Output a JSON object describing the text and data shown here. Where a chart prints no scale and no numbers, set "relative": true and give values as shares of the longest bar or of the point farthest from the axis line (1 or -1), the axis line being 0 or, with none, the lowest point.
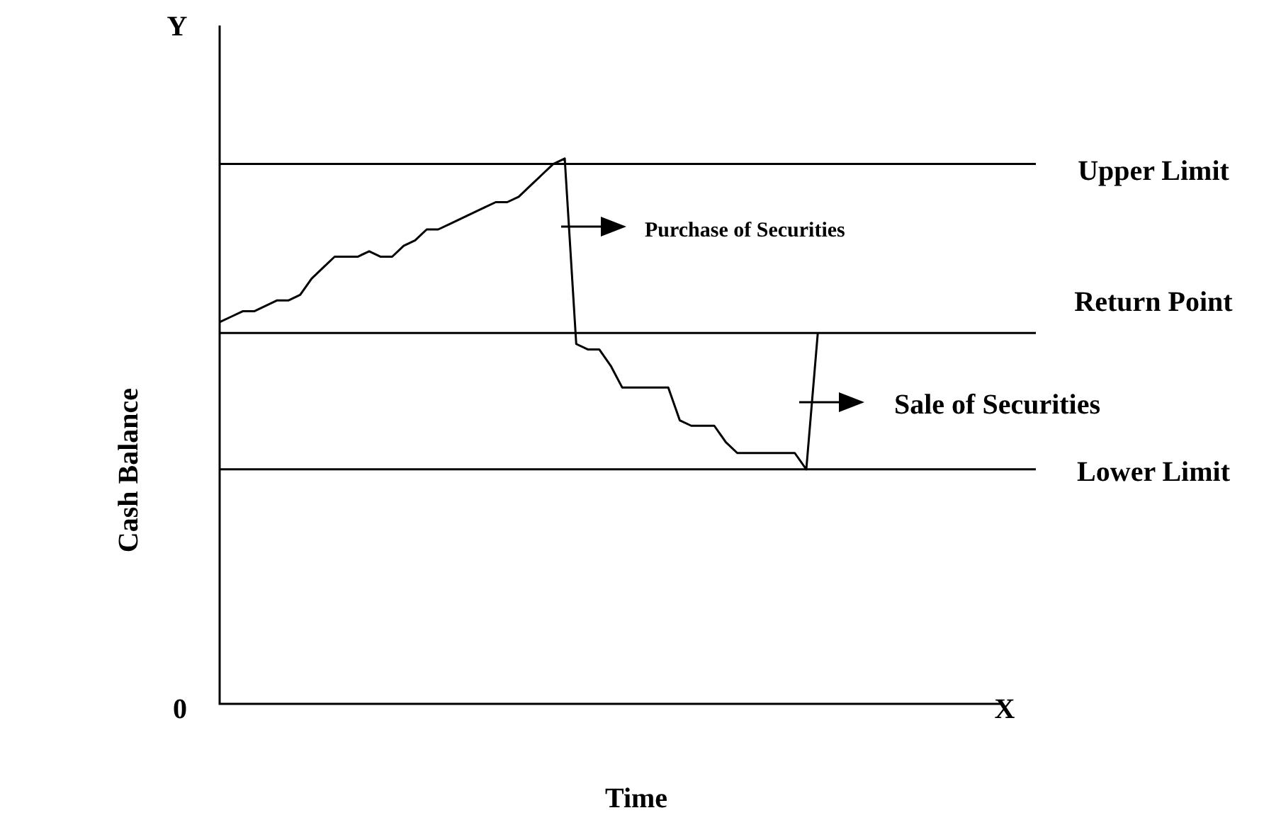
{
  "chart_data": {
    "type": "line",
    "relative": true,
    "xlabel": "Time",
    "ylabel": "Cash Balance",
    "legend": false,
    "marker": "none",
    "line_style": "solid",
    "categories": [
      null,
      null,
      null,
      null,
      null,
      null,
      null,
      null,
      null,
      null,
      null,
      null,
      null,
      null,
      null,
      null,
      null,
      null,
      null,
      null,
      null,
      null,
      null,
      null,
      null,
      null,
      null,
      null,
      null,
      null,
      null,
      null,
      null,
      null,
      null,
      null,
      null,
      null,
      null,
      null,
      null,
      null,
      null,
      null,
      null,
      null,
      null,
      null,
      null,
      null,
      null,
      null,
      null,
      null,
      null,
      null,
      null,
      null,
      null,
      null,
      null,
      null,
      null,
      null,
      null,
      null,
      null,
      null,
      null
    ],
    "series": [
      {
        "color": "#000000",
        "values": [
          0.7,
          0.71,
          0.72,
          0.72,
          0.73,
          0.74,
          0.74,
          0.75,
          0.78,
          0.8,
          0.82,
          0.82,
          0.82,
          0.83,
          0.82,
          0.82,
          0.84,
          0.85,
          0.87,
          0.87,
          0.88,
          0.89,
          0.9,
          0.91,
          0.92,
          0.92,
          0.93,
          0.95,
          0.97,
          0.99,
          1,
          0.66,
          0.65,
          0.65,
          0.62,
          0.58,
          0.58,
          0.58,
          0.58,
          0.58,
          0.52,
          0.51,
          0.51,
          0.51,
          0.48,
          0.46,
          0.46,
          0.46,
          0.46,
          0.46,
          0.46,
          0.43,
          0.68,
          null,
          null,
          null,
          null,
          null,
          null,
          null,
          null,
          null,
          null,
          null,
          null,
          null,
          null,
          null,
          null
        ]
      }
    ],
    "ref_lines": [
      {
        "axis": "y",
        "value": 0.99,
        "label": "Upper Limit",
        "color": "#000000"
      },
      {
        "axis": "y",
        "value": 0.68,
        "label": "Return Point",
        "color": "#000000"
      },
      {
        "axis": "y",
        "value": 0.43,
        "label": "Lower Limit",
        "color": "#000000"
      }
    ],
    "annotations": [
      "Y",
      "X",
      "0",
      "Purchase of Securities",
      "Sale of Securities"
    ]
  }
}
